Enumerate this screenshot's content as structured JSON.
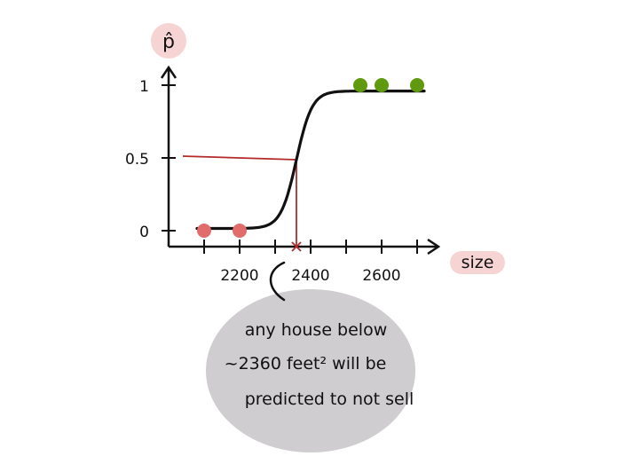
{
  "chart_data": {
    "type": "scatter",
    "xlabel": "size",
    "ylabel": "p̂",
    "x_ticks": [
      "2200",
      "2400",
      "2600"
    ],
    "y_ticks": [
      "0",
      "0.5",
      "1"
    ],
    "xlim": [
      2000,
      2800
    ],
    "ylim": [
      0,
      1
    ],
    "grid": false,
    "series": [
      {
        "kind": "points",
        "values": [
          [
            2100,
            0
          ],
          [
            2200,
            0
          ]
        ],
        "color": "#e06c6c"
      },
      {
        "kind": "points",
        "values": [
          [
            2540,
            1
          ],
          [
            2600,
            1
          ],
          [
            2700,
            1
          ]
        ],
        "color": "#5f9a0e"
      },
      {
        "kind": "sigmoid_curve",
        "x_range": [
          2080,
          2720
        ],
        "midpoint": 2360,
        "color": "#111111"
      }
    ],
    "threshold": {
      "x": 2360,
      "y": 0.5,
      "color": "#b22a2a"
    },
    "annotation": {
      "lines": [
        "any house below",
        "~2360 feet² will be",
        "predicted to not sell"
      ]
    }
  },
  "colors": {
    "axis": "#111111",
    "label_bg": "#f7d4d4",
    "bubble": "#cfcdcf"
  }
}
